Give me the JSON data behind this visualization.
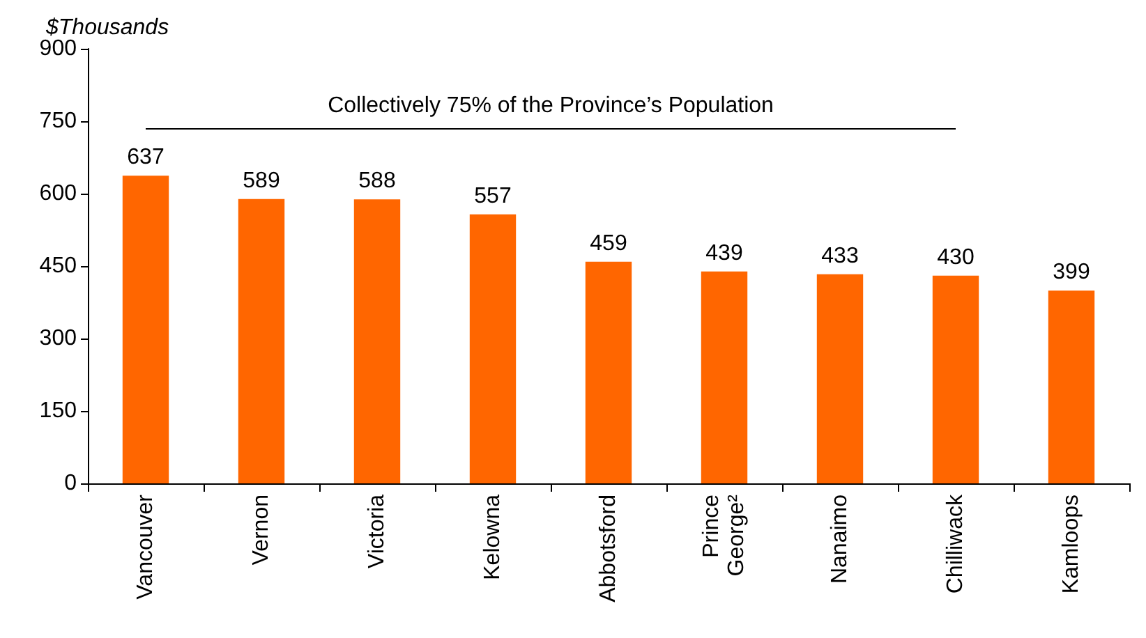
{
  "chart_data": {
    "type": "bar",
    "ylabel": "$Thousands",
    "categories": [
      "Vancouver",
      "Vernon",
      "Victoria",
      "Kelowna",
      "Abbotsford",
      "Prince George²",
      "Nanaimo",
      "Chilliwack",
      "Kamloops"
    ],
    "values": [
      637,
      589,
      588,
      557,
      459,
      439,
      433,
      430,
      399
    ],
    "color": "#ff6600",
    "ylim": [
      0,
      900
    ],
    "yticks": [
      0,
      150,
      300,
      450,
      600,
      750,
      900
    ],
    "grid": false,
    "data_labels": true,
    "ref_lines": [
      {
        "axis": "y",
        "value": 735,
        "label": "Collectively 75% of the Province’s Population"
      }
    ]
  }
}
